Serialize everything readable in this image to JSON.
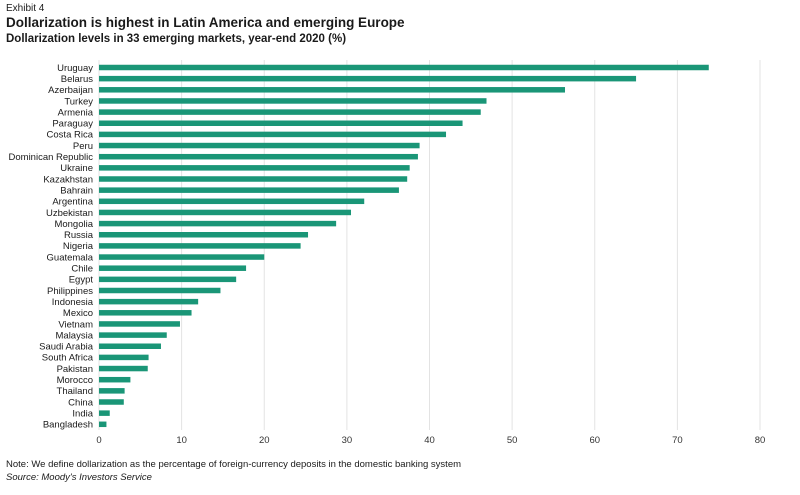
{
  "header": {
    "exhibit": "Exhibit 4",
    "title": "Dollarization is highest in Latin America and emerging Europe",
    "subtitle": "Dollarization levels in 33 emerging markets, year-end 2020 (%)"
  },
  "footer": {
    "note": "Note: We define dollarization as the percentage of foreign-currency deposits in the domestic banking system",
    "source": "Source: Moody's Investors Service"
  },
  "chart_data": {
    "type": "bar",
    "orientation": "horizontal",
    "categories": [
      "Uruguay",
      "Belarus",
      "Azerbaijan",
      "Turkey",
      "Armenia",
      "Paraguay",
      "Costa Rica",
      "Peru",
      "Dominican Republic",
      "Ukraine",
      "Kazakhstan",
      "Bahrain",
      "Argentina",
      "Uzbekistan",
      "Mongolia",
      "Russia",
      "Nigeria",
      "Guatemala",
      "Chile",
      "Egypt",
      "Philippines",
      "Indonesia",
      "Mexico",
      "Vietnam",
      "Malaysia",
      "Saudi Arabia",
      "South Africa",
      "Pakistan",
      "Morocco",
      "Thailand",
      "China",
      "India",
      "Bangladesh"
    ],
    "values": [
      73.8,
      65.0,
      56.4,
      46.9,
      46.2,
      44.0,
      42.0,
      38.8,
      38.6,
      37.6,
      37.3,
      36.3,
      32.1,
      30.5,
      28.7,
      25.3,
      24.4,
      20.0,
      17.8,
      16.6,
      14.7,
      12.0,
      11.2,
      9.8,
      8.2,
      7.5,
      6.0,
      5.9,
      3.8,
      3.1,
      3.0,
      1.3,
      0.9
    ],
    "xlim": [
      0,
      80
    ],
    "xticks": [
      0,
      10,
      20,
      30,
      40,
      50,
      60,
      70,
      80
    ],
    "bar_color": "#1a9677",
    "grid": true
  }
}
